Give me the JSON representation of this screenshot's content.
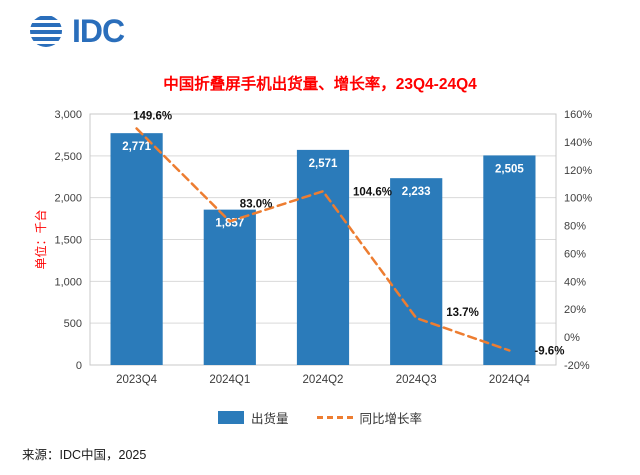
{
  "header": {
    "logo_text": "IDC"
  },
  "title": "中国折叠屏手机出货量、增长率，23Q4-24Q4",
  "source": "来源：IDC中国，2025",
  "legend": {
    "bars": "出货量",
    "line": "同比增长率"
  },
  "colors": {
    "logo_blue": "#2A6EBB",
    "title_red": "#FF0000",
    "bar_blue": "#2B7BBA",
    "line_orange": "#ED7D31",
    "gridline": "#D9D9D9",
    "plot_border": "#C9C9C9"
  },
  "chart_data": {
    "type": "bar",
    "subtype": "bar+line combo",
    "title": "中国折叠屏手机出货量、增长率，23Q4-24Q4",
    "categories": [
      "2023Q4",
      "2024Q1",
      "2024Q2",
      "2024Q3",
      "2024Q4"
    ],
    "series": [
      {
        "name": "出货量",
        "type": "bar",
        "axis": "left",
        "values": [
          2771,
          1857,
          2571,
          2233,
          2505
        ],
        "labels": [
          "2,771",
          "1,857",
          "2,571",
          "2,233",
          "2,505"
        ],
        "color": "#2B7BBA"
      },
      {
        "name": "同比增长率",
        "type": "line",
        "axis": "right",
        "values": [
          149.6,
          83.0,
          104.6,
          13.7,
          -9.6
        ],
        "labels": [
          "149.6%",
          "83.0%",
          "104.6%",
          "13.7%",
          "-9.6%"
        ],
        "color": "#ED7D31",
        "dashed": true
      }
    ],
    "left_axis": {
      "title": "单位：千台",
      "range": [
        0,
        3000
      ],
      "step": 500
    },
    "right_axis": {
      "range": [
        -20,
        160
      ],
      "step": 20,
      "suffix": "%"
    },
    "grid": true,
    "legend_position": "bottom"
  }
}
